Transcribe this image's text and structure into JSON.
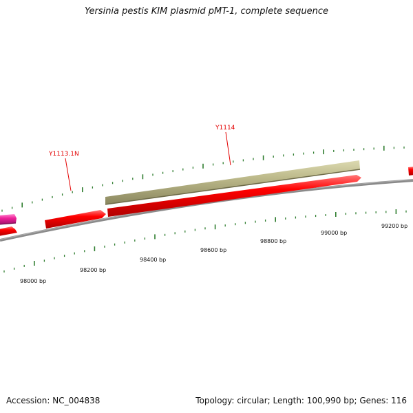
{
  "title": "Yersinia pestis KIM plasmid pMT-1, complete sequence",
  "footer": {
    "accession": "Accession: NC_004838",
    "summary": "Topology: circular; Length: 100,990 bp; Genes: 116"
  },
  "colors": {
    "backbone": "#808080",
    "tick": "#2e7d2e",
    "cds": "#ee0000",
    "pseudo": "#bcb98a",
    "magenta": "#ee2299",
    "label": "#e30000"
  },
  "scale": {
    "tick_labels": [
      "98000 bp",
      "98200 bp",
      "98400 bp",
      "98600 bp",
      "98800 bp",
      "99000 bp",
      "99200 bp"
    ]
  },
  "genes": [
    {
      "name": "magenta-feature",
      "label": ""
    },
    {
      "name": "red-feature-left",
      "label": ""
    },
    {
      "name": "red-feature-y1113",
      "label": "Y1113.1N"
    },
    {
      "name": "red-feature-long",
      "label": ""
    },
    {
      "name": "tan-feature-y1114",
      "label": "Y1114"
    },
    {
      "name": "red-feature-right",
      "label": ""
    }
  ]
}
